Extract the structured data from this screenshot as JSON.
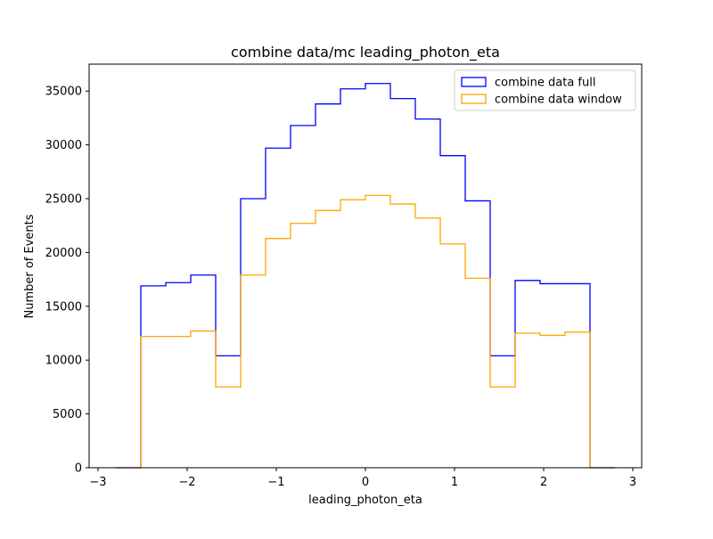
{
  "chart_data": {
    "type": "step-histogram",
    "title": "combine data/mc leading_photon_eta",
    "xlabel": "leading_photon_eta",
    "ylabel": "Number of Events",
    "xlim": [
      -3.1,
      3.1
    ],
    "ylim": [
      0,
      37500
    ],
    "xticks": [
      -3,
      -2,
      -1,
      0,
      1,
      2,
      3
    ],
    "xtick_labels": [
      "−3",
      "−2",
      "−1",
      "0",
      "1",
      "2",
      "3"
    ],
    "yticks": [
      0,
      5000,
      10000,
      15000,
      20000,
      25000,
      30000,
      35000
    ],
    "ytick_labels": [
      "0",
      "5000",
      "10000",
      "15000",
      "20000",
      "25000",
      "30000",
      "35000"
    ],
    "grid": false,
    "legend_position": "upper right",
    "bin_edges": [
      -2.8,
      -2.52,
      -2.24,
      -1.96,
      -1.68,
      -1.4,
      -1.12,
      -0.84,
      -0.56,
      -0.28,
      0,
      0.28,
      0.56,
      0.84,
      1.12,
      1.4,
      1.68,
      1.96,
      2.24,
      2.52,
      2.8
    ],
    "series": [
      {
        "name": "combine data full",
        "color": "#0000ff",
        "values": [
          0,
          16900,
          17200,
          17900,
          10400,
          25000,
          29700,
          31800,
          33800,
          35200,
          35700,
          34300,
          32400,
          29000,
          24800,
          10400,
          17400,
          17100,
          17100,
          0
        ]
      },
      {
        "name": "combine data window",
        "color": "#ffa500",
        "values": [
          0,
          12200,
          12200,
          12700,
          7500,
          17900,
          21300,
          22700,
          23900,
          24900,
          25300,
          24500,
          23200,
          20800,
          17600,
          7500,
          12500,
          12300,
          12600,
          0
        ]
      }
    ]
  }
}
